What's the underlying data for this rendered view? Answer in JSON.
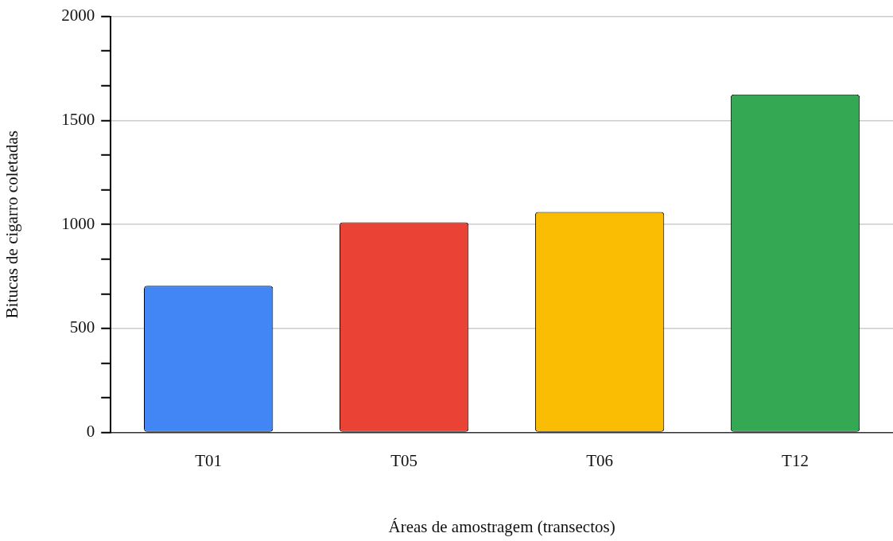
{
  "chart_data": {
    "type": "bar",
    "xlabel": "Áreas de amostragem (transectos)",
    "ylabel": "Bitucas de cigarro coletadas",
    "categories": [
      "T01",
      "T05",
      "T06",
      "T12"
    ],
    "values": [
      705,
      1010,
      1060,
      1625
    ],
    "colors": [
      "#4285f4",
      "#ea4335",
      "#fbbc04",
      "#34a853"
    ],
    "ylim": [
      0,
      2000
    ],
    "yticks": [
      0,
      {
        "value": 166.7,
        "label": null
      },
      {
        "value": 333.3,
        "label": null
      },
      500,
      {
        "value": 666.7,
        "label": null
      },
      {
        "value": 833.3,
        "label": null
      },
      1000,
      {
        "value": 1166.7,
        "label": null
      },
      {
        "value": 1333.3,
        "label": null
      },
      1500,
      {
        "value": 1666.7,
        "label": null
      },
      {
        "value": 1833.3,
        "label": null
      },
      2000
    ],
    "grid": "y"
  }
}
